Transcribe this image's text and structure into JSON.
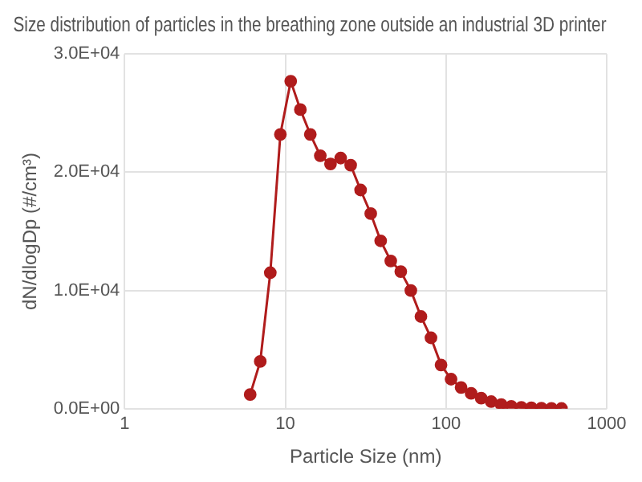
{
  "chart_data": {
    "type": "line",
    "title": "Size distribution of particles in the breathing zone outside an industrial 3D printer",
    "xlabel": "Particle Size (nm)",
    "ylabel": "dN/dlogDp (#/cm³)",
    "x": [
      6.04,
      6.98,
      8.06,
      9.31,
      10.8,
      12.4,
      14.3,
      16.5,
      19.1,
      22.1,
      25.5,
      29.4,
      34.0,
      39.2,
      45.3,
      52.3,
      60.4,
      69.8,
      80.6,
      93.1,
      107.5,
      124.1,
      143.3,
      165.5,
      191.1,
      220.7,
      254.8,
      294.3,
      339.8,
      392.4,
      453.2,
      523.3
    ],
    "series": [
      {
        "color": "#b01c1c",
        "values": [
          1200,
          4000,
          11500,
          23200,
          27700,
          25300,
          23200,
          21400,
          20700,
          21200,
          20600,
          18500,
          16500,
          14200,
          12500,
          11600,
          10000,
          7800,
          6000,
          3700,
          2500,
          1800,
          1300,
          900,
          600,
          350,
          200,
          120,
          80,
          50,
          30,
          20
        ]
      }
    ],
    "log": "x",
    "xlim": [
      1,
      1000
    ],
    "xticks": [
      1,
      10,
      100,
      1000
    ],
    "ylim": [
      0,
      30000
    ],
    "yticks": [
      {
        "value": 0,
        "label": "0.0E+00"
      },
      {
        "value": 10000,
        "label": "1.0E+04"
      },
      {
        "value": 20000,
        "label": "2.0E+04"
      },
      {
        "value": 30000,
        "label": "3.0E+04"
      }
    ],
    "grid": true,
    "legend": false,
    "marker": "circle",
    "line_style": "solid"
  }
}
